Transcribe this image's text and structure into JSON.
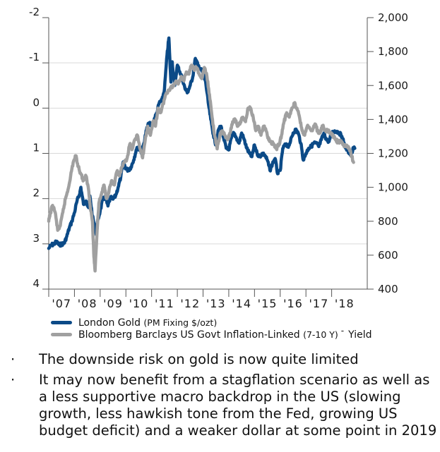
{
  "chart_data": {
    "type": "line",
    "title": "",
    "x_tick_labels": [
      "'07",
      "'08",
      "'09",
      "'10",
      "'11",
      "'12",
      "'13",
      "'14",
      "'15",
      "'16",
      "'17",
      "'18"
    ],
    "x_range": [
      2007.0,
      2019.0
    ],
    "left_axis": {
      "label": "",
      "inverted": true,
      "range": [
        -2,
        4
      ],
      "ticks": [
        "-2",
        "-1",
        "0",
        "1",
        "2",
        "3",
        "4"
      ]
    },
    "right_axis": {
      "label": "",
      "range": [
        400,
        2000
      ],
      "ticks": [
        "2,000",
        "1,800",
        "1,600",
        "1,400",
        "1,200",
        "1,000",
        "800",
        "600",
        "400"
      ]
    },
    "grid": true,
    "legend_position": "bottom-left",
    "series": [
      {
        "name": "London Gold",
        "name_suffix": "(PM Fixing $/ozt)",
        "axis": "right",
        "color": "#0b4a87",
        "points": [
          [
            2007.0,
            640
          ],
          [
            2007.1,
            660
          ],
          [
            2007.2,
            665
          ],
          [
            2007.3,
            680
          ],
          [
            2007.4,
            660
          ],
          [
            2007.5,
            665
          ],
          [
            2007.6,
            670
          ],
          [
            2007.7,
            710
          ],
          [
            2007.8,
            760
          ],
          [
            2007.9,
            800
          ],
          [
            2008.0,
            850
          ],
          [
            2008.1,
            920
          ],
          [
            2008.2,
            960
          ],
          [
            2008.25,
            1000
          ],
          [
            2008.35,
            900
          ],
          [
            2008.45,
            920
          ],
          [
            2008.55,
            880
          ],
          [
            2008.6,
            950
          ],
          [
            2008.7,
            830
          ],
          [
            2008.8,
            760
          ],
          [
            2008.85,
            720
          ],
          [
            2008.9,
            800
          ],
          [
            2009.0,
            860
          ],
          [
            2009.1,
            930
          ],
          [
            2009.2,
            940
          ],
          [
            2009.3,
            890
          ],
          [
            2009.4,
            940
          ],
          [
            2009.5,
            930
          ],
          [
            2009.6,
            950
          ],
          [
            2009.7,
            1000
          ],
          [
            2009.8,
            1060
          ],
          [
            2009.9,
            1150
          ],
          [
            2010.0,
            1110
          ],
          [
            2010.1,
            1100
          ],
          [
            2010.2,
            1120
          ],
          [
            2010.3,
            1160
          ],
          [
            2010.4,
            1220
          ],
          [
            2010.5,
            1240
          ],
          [
            2010.6,
            1200
          ],
          [
            2010.7,
            1260
          ],
          [
            2010.8,
            1340
          ],
          [
            2010.9,
            1380
          ],
          [
            2011.0,
            1360
          ],
          [
            2011.1,
            1400
          ],
          [
            2011.2,
            1440
          ],
          [
            2011.3,
            1500
          ],
          [
            2011.4,
            1510
          ],
          [
            2011.5,
            1580
          ],
          [
            2011.6,
            1780
          ],
          [
            2011.67,
            1880
          ],
          [
            2011.75,
            1620
          ],
          [
            2011.8,
            1740
          ],
          [
            2011.9,
            1600
          ],
          [
            2012.0,
            1720
          ],
          [
            2012.1,
            1680
          ],
          [
            2012.2,
            1640
          ],
          [
            2012.3,
            1580
          ],
          [
            2012.4,
            1560
          ],
          [
            2012.5,
            1600
          ],
          [
            2012.6,
            1650
          ],
          [
            2012.7,
            1760
          ],
          [
            2012.8,
            1720
          ],
          [
            2012.9,
            1700
          ],
          [
            2013.0,
            1670
          ],
          [
            2013.1,
            1620
          ],
          [
            2013.2,
            1500
          ],
          [
            2013.3,
            1400
          ],
          [
            2013.4,
            1310
          ],
          [
            2013.5,
            1250
          ],
          [
            2013.6,
            1340
          ],
          [
            2013.7,
            1360
          ],
          [
            2013.8,
            1290
          ],
          [
            2013.9,
            1230
          ],
          [
            2014.0,
            1220
          ],
          [
            2014.1,
            1290
          ],
          [
            2014.2,
            1320
          ],
          [
            2014.3,
            1290
          ],
          [
            2014.4,
            1260
          ],
          [
            2014.5,
            1320
          ],
          [
            2014.6,
            1280
          ],
          [
            2014.7,
            1230
          ],
          [
            2014.8,
            1200
          ],
          [
            2014.9,
            1180
          ],
          [
            2015.0,
            1250
          ],
          [
            2015.1,
            1200
          ],
          [
            2015.2,
            1180
          ],
          [
            2015.3,
            1200
          ],
          [
            2015.4,
            1190
          ],
          [
            2015.5,
            1160
          ],
          [
            2015.6,
            1100
          ],
          [
            2015.7,
            1140
          ],
          [
            2015.8,
            1170
          ],
          [
            2015.9,
            1080
          ],
          [
            2016.0,
            1100
          ],
          [
            2016.1,
            1230
          ],
          [
            2016.2,
            1250
          ],
          [
            2016.3,
            1240
          ],
          [
            2016.4,
            1270
          ],
          [
            2016.5,
            1320
          ],
          [
            2016.6,
            1340
          ],
          [
            2016.7,
            1320
          ],
          [
            2016.8,
            1260
          ],
          [
            2016.9,
            1160
          ],
          [
            2017.0,
            1200
          ],
          [
            2017.1,
            1230
          ],
          [
            2017.2,
            1240
          ],
          [
            2017.3,
            1260
          ],
          [
            2017.4,
            1260
          ],
          [
            2017.5,
            1240
          ],
          [
            2017.6,
            1280
          ],
          [
            2017.7,
            1320
          ],
          [
            2017.8,
            1280
          ],
          [
            2017.9,
            1270
          ],
          [
            2018.0,
            1320
          ],
          [
            2018.1,
            1330
          ],
          [
            2018.2,
            1330
          ],
          [
            2018.3,
            1320
          ],
          [
            2018.4,
            1300
          ],
          [
            2018.5,
            1250
          ],
          [
            2018.6,
            1220
          ],
          [
            2018.7,
            1200
          ],
          [
            2018.75,
            1190
          ],
          [
            2018.85,
            1230
          ],
          [
            2018.9,
            1230
          ]
        ]
      },
      {
        "name": "Bloomberg Barclays US Govt Inflation-Linked",
        "name_suffix": "(7-10 Y)",
        "name_tail": "Yield",
        "axis": "left",
        "color": "#a0a0a0",
        "points": [
          [
            2007.0,
            2.5
          ],
          [
            2007.05,
            2.35
          ],
          [
            2007.15,
            2.15
          ],
          [
            2007.25,
            2.3
          ],
          [
            2007.35,
            2.7
          ],
          [
            2007.45,
            2.6
          ],
          [
            2007.55,
            2.3
          ],
          [
            2007.65,
            2.0
          ],
          [
            2007.75,
            1.8
          ],
          [
            2007.85,
            1.5
          ],
          [
            2007.95,
            1.2
          ],
          [
            2008.05,
            1.05
          ],
          [
            2008.15,
            1.3
          ],
          [
            2008.25,
            1.45
          ],
          [
            2008.35,
            1.6
          ],
          [
            2008.45,
            1.5
          ],
          [
            2008.55,
            1.8
          ],
          [
            2008.6,
            2.1
          ],
          [
            2008.7,
            2.5
          ],
          [
            2008.75,
            3.2
          ],
          [
            2008.8,
            3.6
          ],
          [
            2008.88,
            2.7
          ],
          [
            2008.95,
            2.1
          ],
          [
            2009.05,
            1.9
          ],
          [
            2009.15,
            1.7
          ],
          [
            2009.25,
            2.0
          ],
          [
            2009.35,
            1.8
          ],
          [
            2009.45,
            1.6
          ],
          [
            2009.55,
            1.7
          ],
          [
            2009.65,
            1.4
          ],
          [
            2009.75,
            1.5
          ],
          [
            2009.85,
            1.3
          ],
          [
            2009.95,
            1.2
          ],
          [
            2010.05,
            1.1
          ],
          [
            2010.15,
            0.8
          ],
          [
            2010.25,
            0.9
          ],
          [
            2010.35,
            0.7
          ],
          [
            2010.45,
            0.6
          ],
          [
            2010.55,
            0.9
          ],
          [
            2010.65,
            1.1
          ],
          [
            2010.75,
            0.7
          ],
          [
            2010.85,
            0.4
          ],
          [
            2010.95,
            0.6
          ],
          [
            2011.05,
            0.3
          ],
          [
            2011.15,
            0.4
          ],
          [
            2011.25,
            0.0
          ],
          [
            2011.35,
            0.1
          ],
          [
            2011.45,
            -0.1
          ],
          [
            2011.55,
            -0.3
          ],
          [
            2011.65,
            -0.4
          ],
          [
            2011.75,
            -0.45
          ],
          [
            2011.85,
            -0.5
          ],
          [
            2011.95,
            -0.6
          ],
          [
            2012.05,
            -0.55
          ],
          [
            2012.15,
            -0.7
          ],
          [
            2012.25,
            -0.6
          ],
          [
            2012.35,
            -0.8
          ],
          [
            2012.45,
            -0.75
          ],
          [
            2012.55,
            -0.95
          ],
          [
            2012.65,
            -0.85
          ],
          [
            2012.75,
            -0.9
          ],
          [
            2012.85,
            -0.75
          ],
          [
            2012.95,
            -0.65
          ],
          [
            2013.05,
            -0.9
          ],
          [
            2013.15,
            -0.7
          ],
          [
            2013.25,
            -0.3
          ],
          [
            2013.35,
            0.2
          ],
          [
            2013.45,
            0.6
          ],
          [
            2013.55,
            0.9
          ],
          [
            2013.65,
            0.6
          ],
          [
            2013.75,
            0.5
          ],
          [
            2013.85,
            0.6
          ],
          [
            2013.95,
            0.7
          ],
          [
            2014.05,
            0.55
          ],
          [
            2014.15,
            0.3
          ],
          [
            2014.25,
            0.25
          ],
          [
            2014.35,
            0.4
          ],
          [
            2014.45,
            0.3
          ],
          [
            2014.55,
            0.2
          ],
          [
            2014.65,
            0.3
          ],
          [
            2014.75,
            0.0
          ],
          [
            2014.85,
            0.0
          ],
          [
            2014.95,
            0.2
          ],
          [
            2015.05,
            0.5
          ],
          [
            2015.15,
            0.4
          ],
          [
            2015.25,
            0.6
          ],
          [
            2015.35,
            0.4
          ],
          [
            2015.45,
            0.5
          ],
          [
            2015.55,
            0.7
          ],
          [
            2015.65,
            0.75
          ],
          [
            2015.75,
            0.8
          ],
          [
            2015.85,
            0.9
          ],
          [
            2015.95,
            0.8
          ],
          [
            2016.05,
            0.6
          ],
          [
            2016.15,
            0.3
          ],
          [
            2016.25,
            0.1
          ],
          [
            2016.35,
            0.2
          ],
          [
            2016.45,
            0.0
          ],
          [
            2016.55,
            -0.1
          ],
          [
            2016.65,
            0.0
          ],
          [
            2016.75,
            0.2
          ],
          [
            2016.85,
            0.5
          ],
          [
            2016.95,
            0.6
          ],
          [
            2017.05,
            0.4
          ],
          [
            2017.15,
            0.45
          ],
          [
            2017.25,
            0.5
          ],
          [
            2017.35,
            0.35
          ],
          [
            2017.45,
            0.5
          ],
          [
            2017.55,
            0.55
          ],
          [
            2017.65,
            0.4
          ],
          [
            2017.75,
            0.5
          ],
          [
            2017.85,
            0.5
          ],
          [
            2017.95,
            0.55
          ],
          [
            2018.05,
            0.6
          ],
          [
            2018.15,
            0.7
          ],
          [
            2018.25,
            0.75
          ],
          [
            2018.35,
            0.75
          ],
          [
            2018.45,
            0.8
          ],
          [
            2018.55,
            0.85
          ],
          [
            2018.65,
            0.85
          ],
          [
            2018.75,
            1.0
          ],
          [
            2018.85,
            1.2
          ]
        ]
      }
    ]
  },
  "bullets": [
    {
      "marker": "·",
      "text": "The downside risk on gold is now quite limited"
    },
    {
      "marker": "·",
      "text": "It may now benefit from a stagflation scenario as well as a less supportive macro backdrop in the US (slowing growth, less hawkish tone from the Fed, growing US budget deficit) and a weaker dollar at some point in 2019"
    }
  ]
}
